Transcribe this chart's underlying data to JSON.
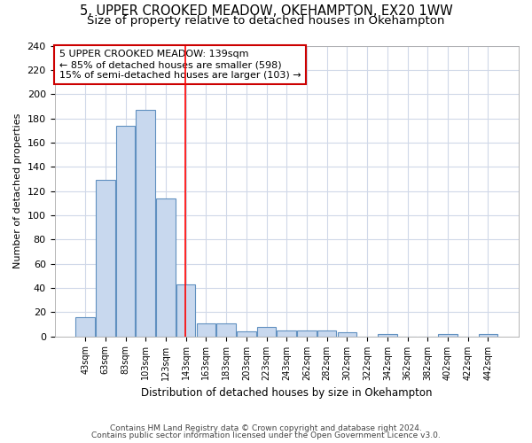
{
  "title1": "5, UPPER CROOKED MEADOW, OKEHAMPTON, EX20 1WW",
  "title2": "Size of property relative to detached houses in Okehampton",
  "xlabel": "Distribution of detached houses by size in Okehampton",
  "ylabel": "Number of detached properties",
  "bar_color": "#c8d8ee",
  "bar_edge_color": "#6090c0",
  "categories": [
    "43sqm",
    "63sqm",
    "83sqm",
    "103sqm",
    "123sqm",
    "143sqm",
    "163sqm",
    "183sqm",
    "203sqm",
    "223sqm",
    "243sqm",
    "262sqm",
    "282sqm",
    "302sqm",
    "322sqm",
    "342sqm",
    "362sqm",
    "382sqm",
    "402sqm",
    "422sqm",
    "442sqm"
  ],
  "values": [
    16,
    129,
    174,
    187,
    114,
    43,
    11,
    11,
    4,
    8,
    5,
    5,
    5,
    3,
    0,
    2,
    0,
    0,
    2,
    0,
    2
  ],
  "red_line_bin_index": 4.95,
  "annotation_text": "5 UPPER CROOKED MEADOW: 139sqm\n← 85% of detached houses are smaller (598)\n15% of semi-detached houses are larger (103) →",
  "ylim": [
    0,
    240
  ],
  "yticks": [
    0,
    20,
    40,
    60,
    80,
    100,
    120,
    140,
    160,
    180,
    200,
    220,
    240
  ],
  "footnote1": "Contains HM Land Registry data © Crown copyright and database right 2024.",
  "footnote2": "Contains public sector information licensed under the Open Government Licence v3.0.",
  "bg_color": "#ffffff",
  "grid_color": "#d0d8e8",
  "title1_fontsize": 10.5,
  "title2_fontsize": 9.5,
  "annotation_box_color": "#ffffff",
  "annotation_box_edge": "#cc0000"
}
